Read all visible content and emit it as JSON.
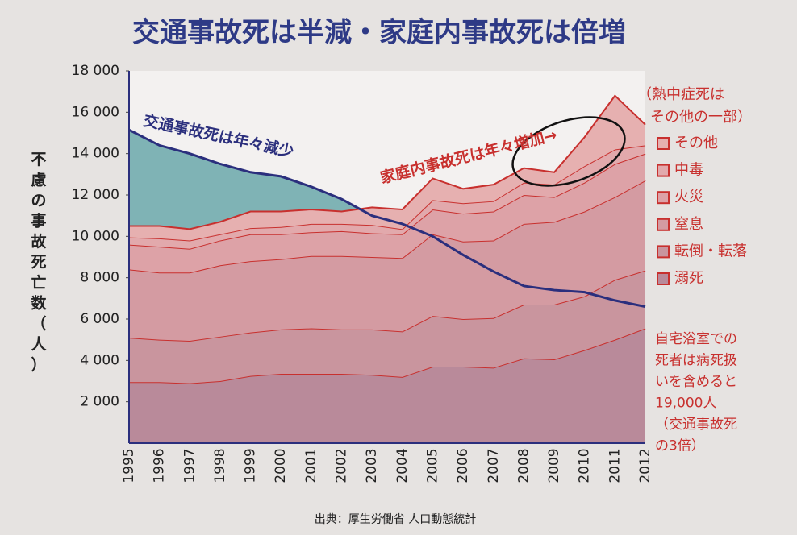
{
  "chart_data": {
    "type": "stacked_area",
    "title": "交通事故死は半減・家庭内事故死は倍増",
    "y_label": "不慮の事故死亡数（人）",
    "source": "出典：厚生労働省 人口動態統計",
    "categories": [
      "1995",
      "1996",
      "1997",
      "1998",
      "1999",
      "2000",
      "2001",
      "2002",
      "2003",
      "2004",
      "2005",
      "2006",
      "2007",
      "2008",
      "2009",
      "2010",
      "2011",
      "2012"
    ],
    "ylim": [
      0,
      18000
    ],
    "yticks": [
      {
        "value": 2000,
        "label": "2 000"
      },
      {
        "value": 4000,
        "label": "4 000"
      },
      {
        "value": 6000,
        "label": "6 000"
      },
      {
        "value": 8000,
        "label": "8 000"
      },
      {
        "value": 10000,
        "label": "10 000"
      },
      {
        "value": 12000,
        "label": "12 000"
      },
      {
        "value": 14000,
        "label": "14 000"
      },
      {
        "value": 16000,
        "label": "16 000"
      },
      {
        "value": 18000,
        "label": "18 000"
      }
    ],
    "series": [
      {
        "name": "溺死",
        "color": "#b98a9a",
        "values": [
          2950,
          2950,
          2900,
          3000,
          3250,
          3350,
          3350,
          3350,
          3300,
          3200,
          3700,
          3700,
          3650,
          4100,
          4050,
          4500,
          5000,
          5550
        ]
      },
      {
        "name": "転倒・転落",
        "color": "#c9959e",
        "values": [
          2150,
          2050,
          2050,
          2150,
          2100,
          2150,
          2200,
          2150,
          2200,
          2200,
          2450,
          2300,
          2400,
          2600,
          2650,
          2600,
          2900,
          2800
        ]
      },
      {
        "name": "窒息",
        "color": "#d49ba2",
        "values": [
          3300,
          3250,
          3300,
          3450,
          3450,
          3400,
          3500,
          3550,
          3500,
          3550,
          3950,
          3750,
          3750,
          3900,
          4000,
          4100,
          4000,
          4350
        ]
      },
      {
        "name": "火災",
        "color": "#dda2a7",
        "values": [
          1200,
          1250,
          1150,
          1200,
          1300,
          1200,
          1150,
          1200,
          1150,
          1150,
          1200,
          1350,
          1400,
          1400,
          1200,
          1400,
          1600,
          1300
        ]
      },
      {
        "name": "中毒",
        "color": "#e2a9ac",
        "values": [
          350,
          400,
          400,
          300,
          300,
          350,
          400,
          350,
          400,
          250,
          450,
          500,
          500,
          600,
          600,
          800,
          700,
          400
        ]
      },
      {
        "name": "その他",
        "color": "#e6b0b0",
        "values": [
          550,
          600,
          550,
          600,
          800,
          750,
          700,
          600,
          850,
          950,
          1050,
          700,
          800,
          700,
          600,
          1400,
          2600,
          1000
        ]
      }
    ],
    "line_series": {
      "color": "#2b2f7d",
      "fill": "#7fb3b5",
      "values": [
        15150,
        14400,
        14000,
        13500,
        13100,
        12900,
        12400,
        11800,
        11000,
        10600,
        10000,
        9100,
        8300,
        7600,
        7400,
        7300,
        6900,
        6600
      ]
    },
    "annotations": {
      "traffic": "交通事故死は年々減少",
      "home": "家庭内事故死は年々増加→",
      "heatstroke": [
        "（熱中症死は",
        "その他の一部）"
      ],
      "bath": [
        "自宅浴室での",
        "死者は病死扱",
        "いを含めると",
        "19,000人",
        "（交通事故死",
        "の3倍）"
      ]
    }
  }
}
